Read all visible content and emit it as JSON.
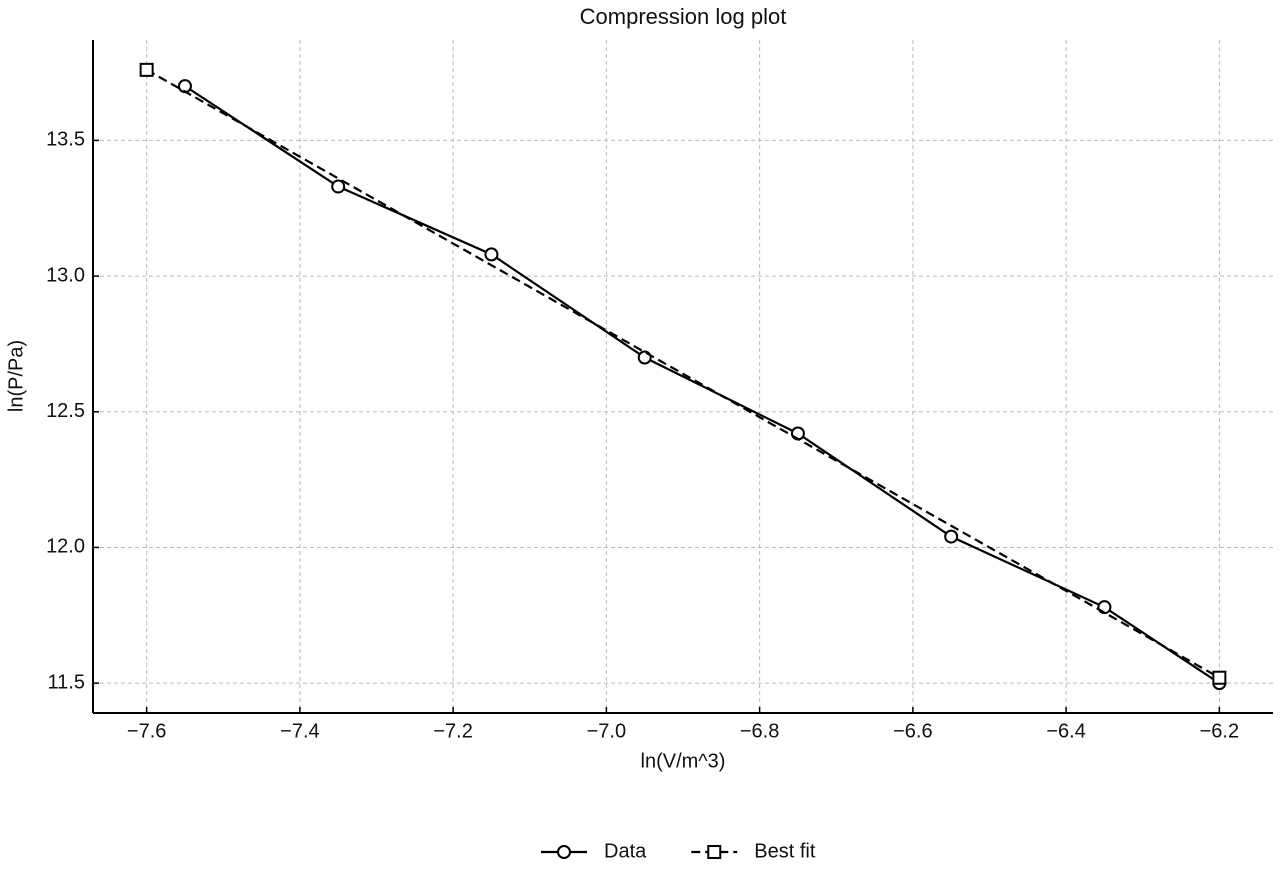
{
  "chart_data": {
    "type": "line",
    "title": "Compression log plot",
    "x_label": "ln(V/m^3)",
    "y_label": "ln(P/Pa)",
    "series": [
      {
        "name": "Data",
        "color": "#000000",
        "marker": "circle",
        "linestyle": "solid",
        "x": [
          -7.55,
          -7.35,
          -7.15,
          -6.95,
          -6.75,
          -6.55,
          -6.35,
          -6.2
        ],
        "values": [
          13.7,
          13.33,
          13.08,
          12.7,
          12.42,
          12.04,
          11.78,
          11.5
        ]
      },
      {
        "name": "Best fit",
        "color": "#000000",
        "marker": "square",
        "linestyle": "dashed",
        "x": [
          -7.6,
          -6.2
        ],
        "values": [
          13.76,
          11.52
        ]
      }
    ],
    "xlim": [
      -7.67,
      -6.13
    ],
    "ylim": [
      11.39,
      13.87
    ],
    "xticks": [
      {
        "value": -7.6,
        "label": "−7.6"
      },
      {
        "value": -7.4,
        "label": "−7.4"
      },
      {
        "value": -7.2,
        "label": "−7.2"
      },
      {
        "value": -7.0,
        "label": "−7.0"
      },
      {
        "value": -6.8,
        "label": "−6.8"
      },
      {
        "value": -6.6,
        "label": "−6.6"
      },
      {
        "value": -6.4,
        "label": "−6.4"
      },
      {
        "value": -6.2,
        "label": "−6.2"
      }
    ],
    "yticks": [
      11.5,
      {
        "value": 12.0,
        "label": "12.0"
      },
      12.5,
      {
        "value": 13.0,
        "label": "13.0"
      },
      13.5
    ],
    "grid": true,
    "legend": "bottom"
  }
}
